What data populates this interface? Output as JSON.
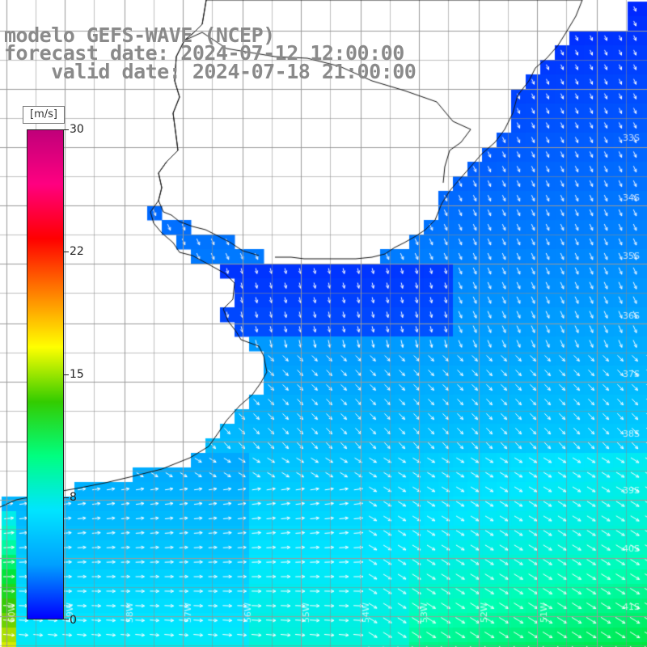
{
  "header": {
    "line1": "modelo GEFS-WAVE (NCEP)",
    "line2": "forecast date: 2024-07-12 12:00:00",
    "line3": "    valid date: 2024-07-18 21:00:00"
  },
  "colorbar": {
    "unit": "[m/s]",
    "ticks": [
      "30",
      "22",
      "15",
      "8",
      "0"
    ],
    "tick_values": [
      30,
      22,
      15,
      8,
      0
    ],
    "range": [
      0,
      30
    ],
    "colors": [
      "#0000ff",
      "#00a0ff",
      "#00e5ff",
      "#00ff80",
      "#33cc00",
      "#ffff00",
      "#ff8000",
      "#ff0000",
      "#ff0080",
      "#c0007a"
    ]
  },
  "map": {
    "land_color": "#ffffff",
    "grid_color": "#9a9a9a",
    "coast_color": "#111111",
    "arrow_color": "#ffffff",
    "lat_labels": [
      "33S",
      "34S",
      "35S",
      "36S",
      "37S",
      "38S",
      "39S",
      "40S",
      "41S"
    ],
    "lon_labels": [
      "60W",
      "59W",
      "58W",
      "57W",
      "56W",
      "55W",
      "54W",
      "53W",
      "52W",
      "51W"
    ]
  }
}
